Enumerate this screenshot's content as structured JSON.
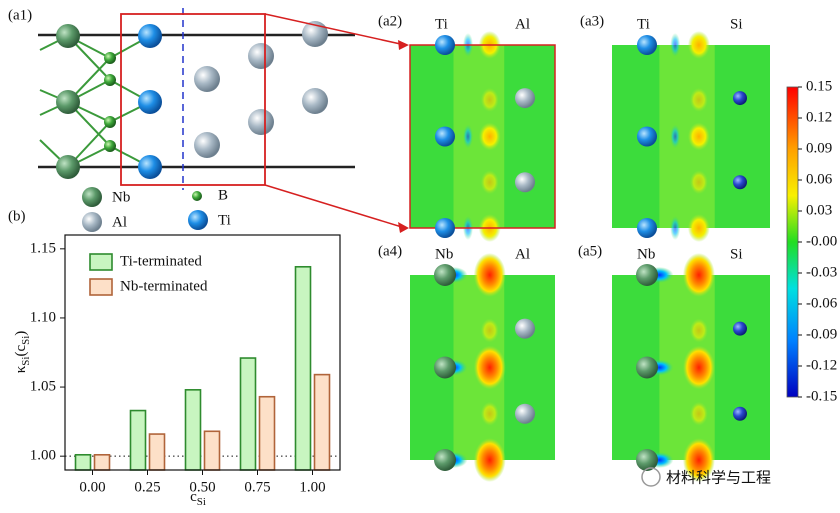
{
  "panel_a1": {
    "label": "(a1)",
    "legend": [
      "Nb",
      "Al",
      "B",
      "Ti"
    ]
  },
  "maps": [
    {
      "label": "(a2)",
      "left": "Ti",
      "right": "Al"
    },
    {
      "label": "(a3)",
      "left": "Ti",
      "right": "Si"
    },
    {
      "label": "(a4)",
      "left": "Nb",
      "right": "Al"
    },
    {
      "label": "(a5)",
      "left": "Nb",
      "right": "Si"
    }
  ],
  "chart_data": [
    {
      "type": "bar",
      "panel": "(b)",
      "xlabel": [
        "c",
        "Si"
      ],
      "ylabel": [
        "κ",
        "Si",
        "(c",
        "Si",
        ")"
      ],
      "categories": [
        "0.00",
        "0.25",
        "0.50",
        "0.75",
        "1.00"
      ],
      "series": [
        {
          "name": "Ti-terminated",
          "color": "#c8f5c0",
          "values": [
            1.001,
            1.033,
            1.048,
            1.071,
            1.137
          ]
        },
        {
          "name": "Nb-terminated",
          "color": "#fde0c8",
          "values": [
            1.001,
            1.016,
            1.018,
            1.043,
            1.059
          ]
        }
      ],
      "ylim": [
        0.99,
        1.16
      ],
      "yticks": [
        {
          "value": 1,
          "label": "1.00"
        },
        1.05,
        {
          "value": 1.1,
          "label": "1.10"
        },
        1.15
      ]
    },
    {
      "type": "colorbar",
      "ylim": [
        -0.15,
        0.15
      ],
      "yticks": [
        0.15,
        0.12,
        0.09,
        0.06,
        0.03,
        {
          "value": 0,
          "label": "-0.00"
        },
        -0.03,
        -0.06,
        -0.09,
        -0.12,
        -0.15
      ]
    }
  ],
  "watermark": "材料科学与工程"
}
